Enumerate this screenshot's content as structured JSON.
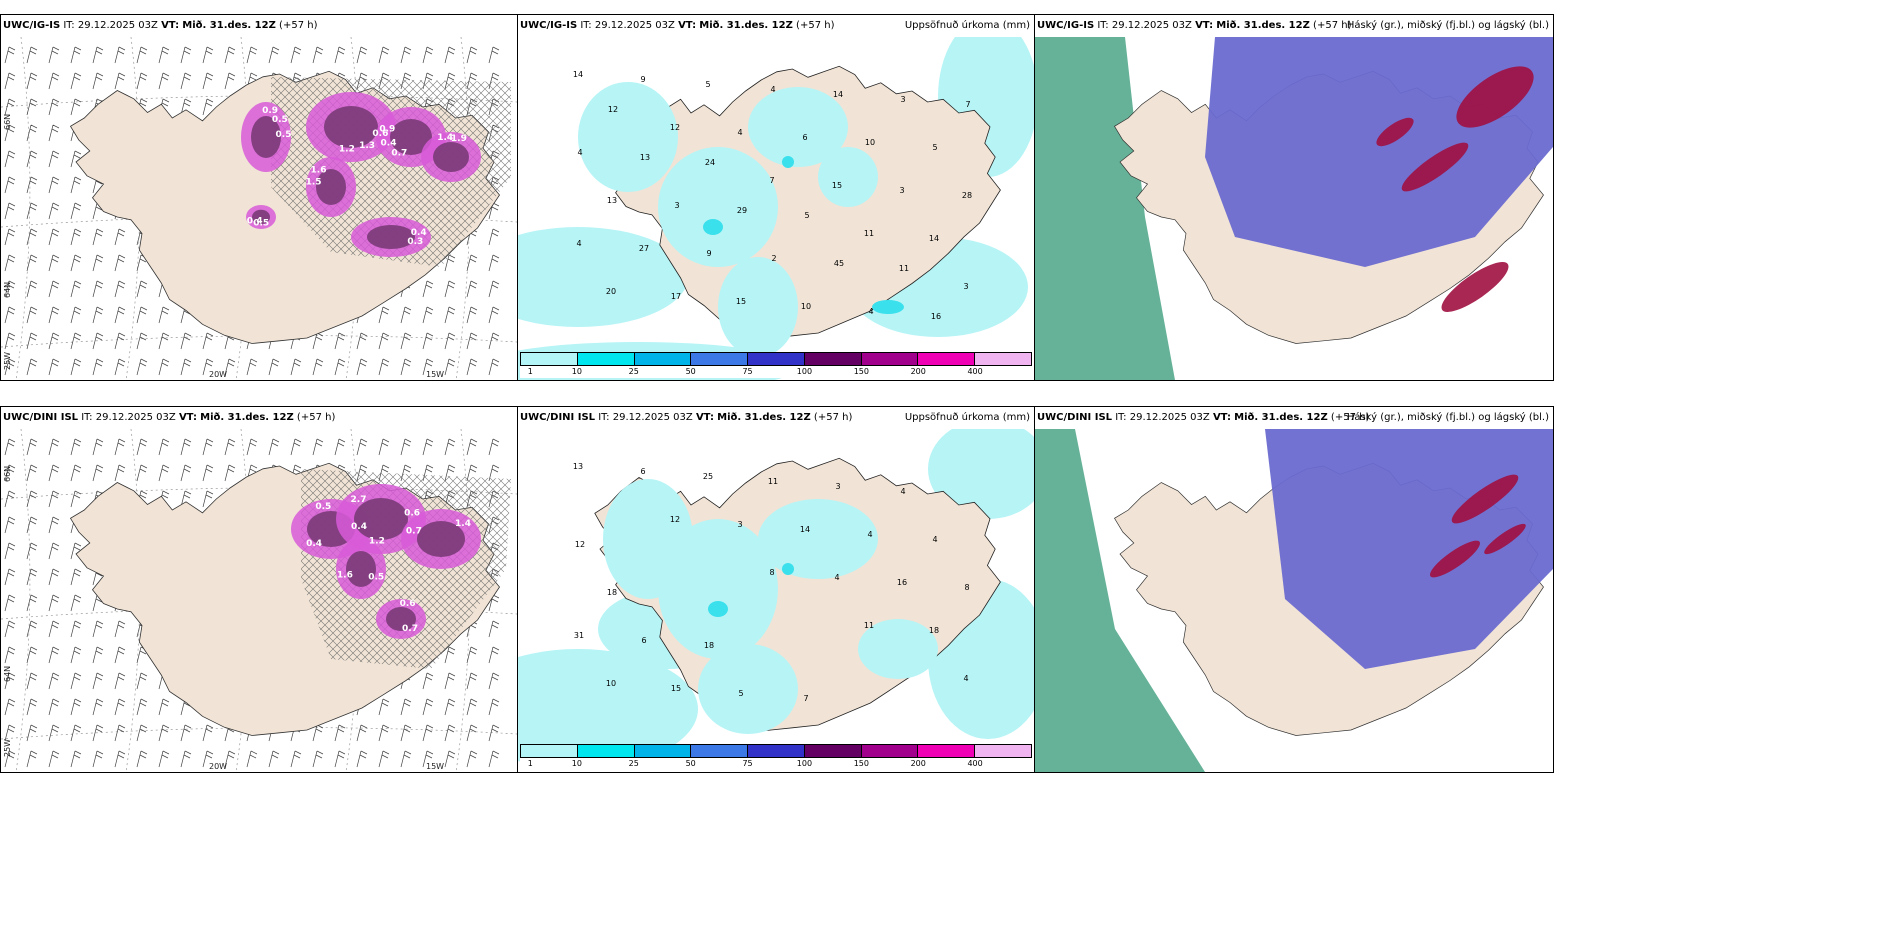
{
  "rows": [
    {
      "model": "UWC/IG-IS",
      "it_label": "IT:",
      "it_value": "29.12.2025 03Z",
      "vt_label": "VT:",
      "vt_value": "Mið. 31.des. 12Z",
      "lead": "(+57 h)"
    },
    {
      "model": "UWC/DINI ISL",
      "it_label": "IT:",
      "it_value": "29.12.2025 03Z",
      "vt_label": "VT:",
      "vt_value": "Mið. 31.des. 12Z",
      "lead": "(+57 h)"
    }
  ],
  "precip_title": "Uppsöfnuð úrkoma (mm)",
  "cloud_title": "Háský (gr.), miðský (fj.bl.) og lágský (bl.)",
  "colorbar": {
    "labels": [
      "1",
      "10",
      "25",
      "50",
      "75",
      "100",
      "150",
      "200",
      "400"
    ],
    "colors": [
      "#b4f6f8",
      "#00e6ee",
      "#00b4ea",
      "#3c78e6",
      "#3232c8",
      "#640064",
      "#a0008c",
      "#f000b4",
      "#f0b4f0"
    ]
  },
  "lon_labels": [
    "20W",
    "15W"
  ],
  "lat_labels": [
    "66N",
    "64N",
    "25W"
  ],
  "colors": {
    "land": "#f1e4d6",
    "precip_light": "#b6f4f6",
    "precip_mid": "#3ae0ec",
    "snow_dark": "#7a3a78",
    "snow_magenta": "#d85ad8",
    "high_cloud": "#6a6ad0",
    "mid_cloud": "#a01040",
    "low_cloud": "#5eae94"
  },
  "values": {
    "top_snow": [
      "0.5",
      "1.2",
      "0.9",
      "1.9",
      "0.3",
      "0.4",
      "1.6",
      "0.5",
      "1.3",
      "0.4",
      "1.4",
      "0.4",
      "0.5",
      "1.5",
      "0.9",
      "0.6",
      "0.7"
    ],
    "top_precip": [
      "14",
      "12",
      "7",
      "11",
      "3",
      "9",
      "4",
      "15",
      "14",
      "20",
      "5",
      "6",
      "3",
      "4",
      "17",
      "4",
      "10",
      "28",
      "27",
      "15",
      "14",
      "5",
      "13",
      "9",
      "10",
      "3",
      "4",
      "3",
      "2",
      "4",
      "7",
      "13",
      "29",
      "45",
      "16",
      "12",
      "24",
      "5",
      "11"
    ],
    "bot_snow": [
      "0.4",
      "1.2",
      "0.7",
      "0.6",
      "0.5",
      "0.4",
      "2.7",
      "1.4",
      "0.7",
      "1.6",
      "0.5",
      "0.6"
    ],
    "bot_precip": [
      "13",
      "12",
      "8",
      "11",
      "4",
      "6",
      "3",
      "4",
      "18",
      "10",
      "25",
      "14",
      "16",
      "31",
      "15",
      "11",
      "4",
      "8",
      "6",
      "5",
      "3",
      "4",
      "18",
      "18",
      "7",
      "4",
      "12"
    ]
  }
}
